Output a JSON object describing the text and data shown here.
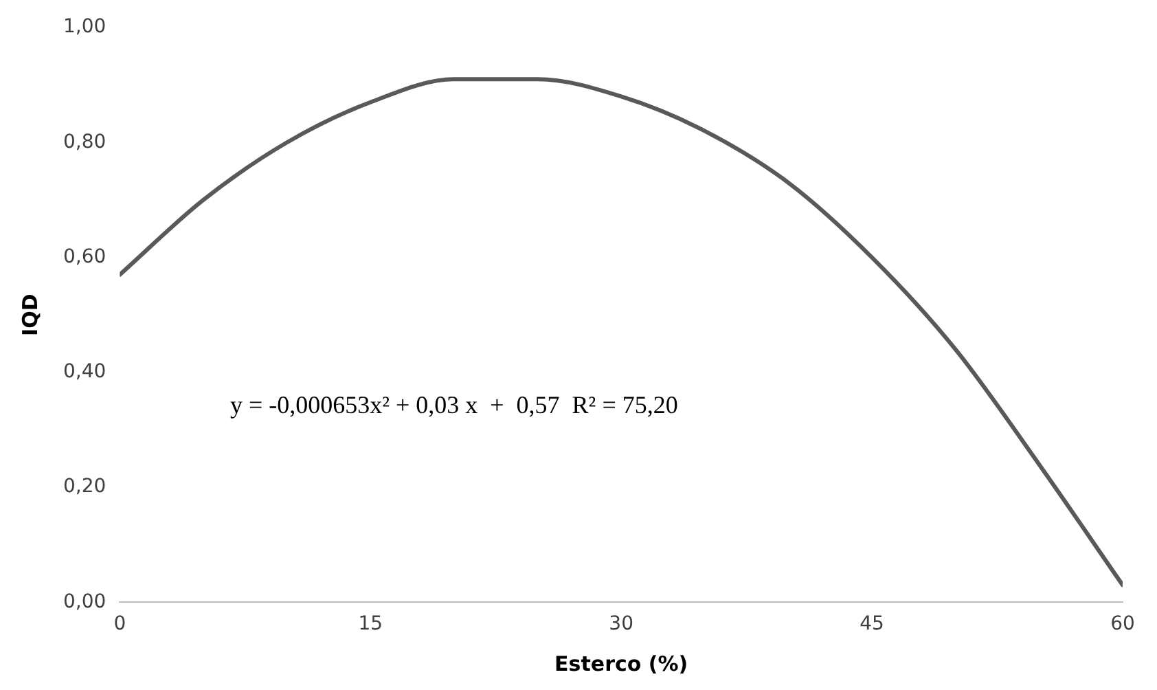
{
  "chart_data": {
    "type": "line",
    "xlabel": "Esterco (%)",
    "ylabel": "IQD",
    "x": [
      0,
      5,
      10,
      15,
      20,
      25,
      30,
      35,
      40,
      45,
      50,
      55,
      60
    ],
    "series": [
      {
        "color": "#595959",
        "values": [
          0.57,
          0.7,
          0.8,
          0.87,
          0.91,
          0.91,
          0.88,
          0.82,
          0.73,
          0.6,
          0.44,
          0.24,
          0.03
        ]
      }
    ],
    "xlim": [
      0,
      60
    ],
    "xticks": [
      0,
      15,
      30,
      45,
      60
    ],
    "ylim": [
      0,
      1
    ],
    "yticks": [
      {
        "value": 0,
        "label": "0,00"
      },
      {
        "value": 0.2,
        "label": "0,20"
      },
      {
        "value": 0.4,
        "label": "0,40"
      },
      {
        "value": 0.6,
        "label": "0,60"
      },
      {
        "value": 0.8,
        "label": "0,80"
      },
      {
        "value": 1,
        "label": "1,00"
      }
    ],
    "annotations": [
      "y = -0,000653x² + 0,03 x  +  0,57  R² = 75,20"
    ],
    "grid": false,
    "legend": false,
    "marker": "none",
    "line_style": "solid"
  }
}
